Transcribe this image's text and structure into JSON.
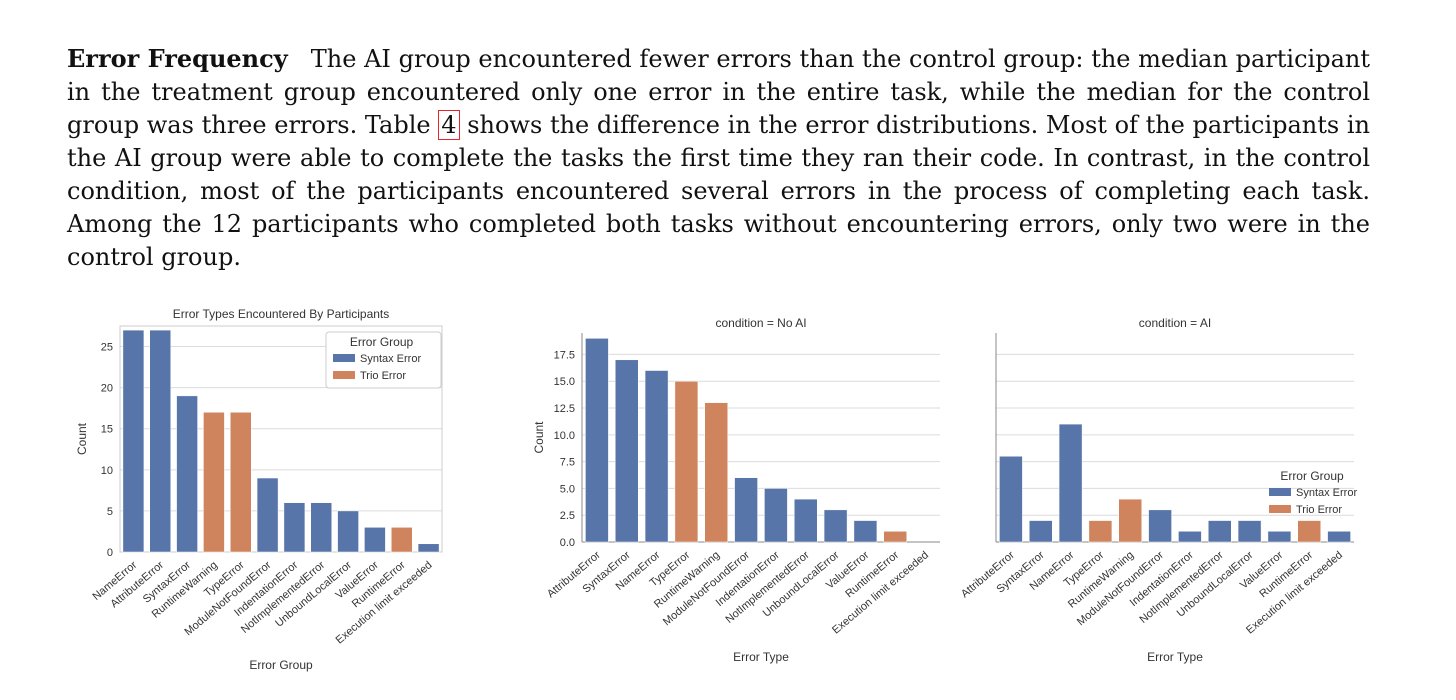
{
  "paragraph": {
    "heading": "Error Frequency",
    "text_before_ref": "The AI group encountered fewer errors than the control group: the median participant in the treatment group encountered only one error in the entire task, while the median for the control group was three errors. Table ",
    "ref": "4",
    "text_after_ref": " shows the difference in the error distributions. Most of the participants in the AI group were able to complete the tasks the first time they ran their code. In contrast, in the control condition, most of the participants encountered several errors in the process of completing each task. Among the 12 participants who completed both tasks without encountering errors, only two were in the control group."
  },
  "colors": {
    "syntax": "#5875A9",
    "trio": "#CF845E",
    "grid": "#dcdcdc",
    "axis": "#888888"
  },
  "chart_data": [
    {
      "type": "bar",
      "title": "Error Types Encountered By Participants",
      "xlabel": "Error Group",
      "ylabel": "Count",
      "ylim": [
        0,
        27.5
      ],
      "yticks": [
        0,
        5,
        10,
        15,
        20,
        25
      ],
      "ytick_labels": [
        "0",
        "5",
        "10",
        "15",
        "20",
        "25"
      ],
      "grid": true,
      "legend": {
        "title": "Error Group",
        "placement": "top-right",
        "entries": [
          "Syntax Error",
          "Trio Error"
        ]
      },
      "categories": [
        "NameError",
        "AttributeError",
        "SyntaxError",
        "RuntimeWarning",
        "TypeError",
        "ModuleNotFoundError",
        "IndentationError",
        "NotImplementedError",
        "UnboundLocalError",
        "ValueError",
        "RuntimeError",
        "Execution limit exceeded"
      ],
      "values": [
        27,
        27,
        19,
        17,
        17,
        9,
        6,
        6,
        5,
        3,
        3,
        1
      ],
      "groups": [
        "Syntax Error",
        "Syntax Error",
        "Syntax Error",
        "Trio Error",
        "Trio Error",
        "Syntax Error",
        "Syntax Error",
        "Syntax Error",
        "Syntax Error",
        "Syntax Error",
        "Trio Error",
        "Syntax Error"
      ]
    },
    {
      "type": "bar",
      "title": "condition = No AI",
      "xlabel": "Error Type",
      "ylabel": "Count",
      "ylim": [
        0,
        19.5
      ],
      "yticks": [
        0,
        2.5,
        5,
        7.5,
        10,
        12.5,
        15,
        17.5
      ],
      "ytick_labels": [
        "0.0",
        "2.5",
        "5.0",
        "7.5",
        "10.0",
        "12.5",
        "15.0",
        "17.5"
      ],
      "grid": true,
      "categories": [
        "AttributeError",
        "SyntaxError",
        "NameError",
        "TypeError",
        "RuntimeWarning",
        "ModuleNotFoundError",
        "IndentationError",
        "NotImplementedError",
        "UnboundLocalError",
        "ValueError",
        "RuntimeError",
        "Execution limit exceeded"
      ],
      "values": [
        19,
        17,
        16,
        15,
        13,
        6,
        5,
        4,
        3,
        2,
        1,
        0
      ],
      "groups": [
        "Syntax Error",
        "Syntax Error",
        "Syntax Error",
        "Trio Error",
        "Trio Error",
        "Syntax Error",
        "Syntax Error",
        "Syntax Error",
        "Syntax Error",
        "Syntax Error",
        "Trio Error",
        "Syntax Error"
      ]
    },
    {
      "type": "bar",
      "title": "condition = AI",
      "xlabel": "Error Type",
      "ylim": [
        0,
        19.5
      ],
      "yticks": [
        0,
        2.5,
        5,
        7.5,
        10,
        12.5,
        15,
        17.5
      ],
      "grid": true,
      "legend": {
        "title": "Error Group",
        "placement": "center-right",
        "entries": [
          "Syntax Error",
          "Trio Error"
        ]
      },
      "categories": [
        "AttributeError",
        "SyntaxError",
        "NameError",
        "TypeError",
        "RuntimeWarning",
        "ModuleNotFoundError",
        "IndentationError",
        "NotImplementedError",
        "UnboundLocalError",
        "ValueError",
        "RuntimeError",
        "Execution limit exceeded"
      ],
      "values": [
        8,
        2,
        11,
        2,
        4,
        3,
        1,
        2,
        2,
        1,
        2,
        1
      ],
      "groups": [
        "Syntax Error",
        "Syntax Error",
        "Syntax Error",
        "Trio Error",
        "Trio Error",
        "Syntax Error",
        "Syntax Error",
        "Syntax Error",
        "Syntax Error",
        "Syntax Error",
        "Trio Error",
        "Syntax Error"
      ]
    }
  ]
}
